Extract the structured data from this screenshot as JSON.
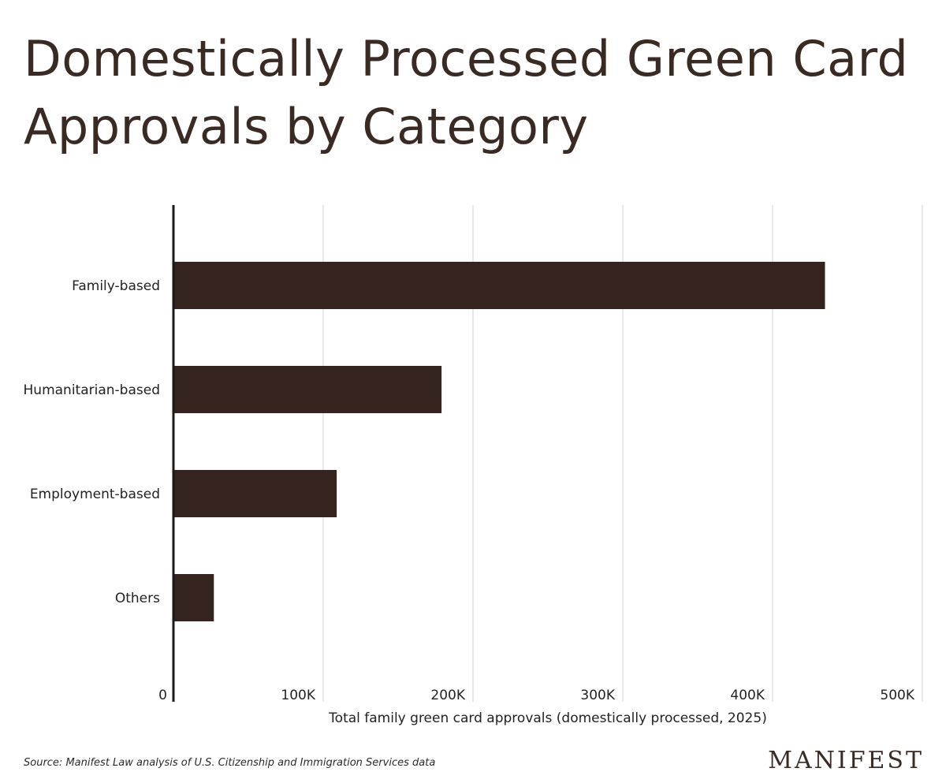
{
  "header": {
    "title": "Domestically Processed Green Card Approvals by Category"
  },
  "footer": {
    "source": "Source: Manifest Law analysis of U.S. Citizenship and Immigration Services data",
    "logo_text": "MANIFEST"
  },
  "colors": {
    "bar": "#35231e",
    "grid": "#e2e2e2",
    "axis": "#1a1a1a",
    "text": "#222222",
    "title": "#3a2a24"
  },
  "chart_data": {
    "type": "bar",
    "orientation": "horizontal",
    "categories": [
      "Family-based",
      "Humanitarian-based",
      "Employment-based",
      "Others"
    ],
    "values": [
      435000,
      179000,
      109000,
      27000
    ],
    "xlabel": "Total family green card approvals (domestically processed, 2025)",
    "ylabel": "",
    "xlim": [
      0,
      500000
    ],
    "xticks": [
      0,
      100000,
      200000,
      300000,
      400000,
      500000
    ],
    "xtick_labels": [
      "0",
      "100K",
      "200K",
      "300K",
      "400K",
      "500K"
    ],
    "grid": true,
    "legend": "none"
  }
}
